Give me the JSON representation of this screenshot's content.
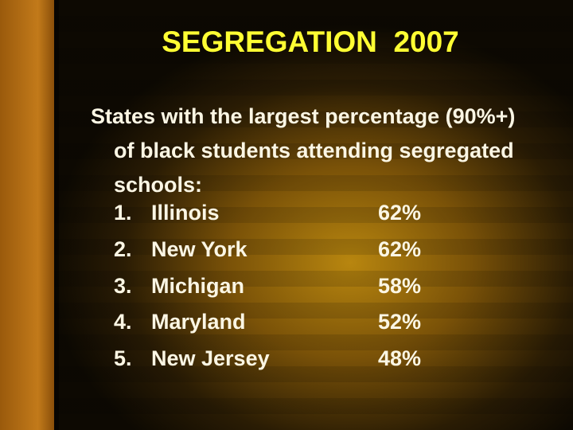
{
  "title": "SEGREGATION  2007",
  "intro": "States with the largest percentage (90%+) of black students attending segregated schools:",
  "items": [
    {
      "number": "1.",
      "state": "Illinois",
      "value": "62%"
    },
    {
      "number": "2.",
      "state": "New York",
      "value": "62%"
    },
    {
      "number": "3.",
      "state": "Michigan",
      "value": "58%"
    },
    {
      "number": "4.",
      "state": "Maryland",
      "value": "52%"
    },
    {
      "number": "5.",
      "state": "New Jersey",
      "value": "48%"
    }
  ]
}
